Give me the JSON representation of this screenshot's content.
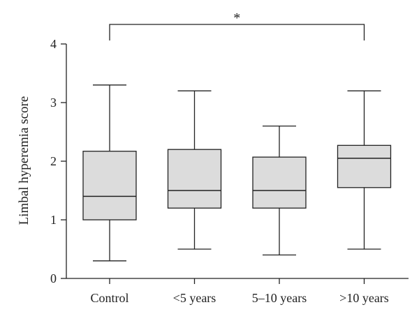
{
  "chart_data": {
    "type": "box",
    "ylabel": "Limbal hyperemia score",
    "xlabel": "",
    "ylim": [
      0,
      4
    ],
    "yticks": [
      0,
      1,
      2,
      3,
      4
    ],
    "categories": [
      "Control",
      "<5 years",
      "5–10 years",
      ">10 years"
    ],
    "boxes": [
      {
        "whisker_low": 0.3,
        "q1": 1.0,
        "median": 1.4,
        "q3": 2.17,
        "whisker_high": 3.3
      },
      {
        "whisker_low": 0.5,
        "q1": 1.2,
        "median": 1.5,
        "q3": 2.2,
        "whisker_high": 3.2
      },
      {
        "whisker_low": 0.4,
        "q1": 1.2,
        "median": 1.5,
        "q3": 2.07,
        "whisker_high": 2.6
      },
      {
        "whisker_low": 0.5,
        "q1": 1.55,
        "median": 2.05,
        "q3": 2.27,
        "whisker_high": 3.2
      }
    ],
    "significance": [
      {
        "from": "Control",
        "to": ">10 years",
        "label": "*"
      }
    ],
    "box_fill": "#dcdcdc",
    "line_color": "#222222",
    "grid": false,
    "legend": "none"
  }
}
